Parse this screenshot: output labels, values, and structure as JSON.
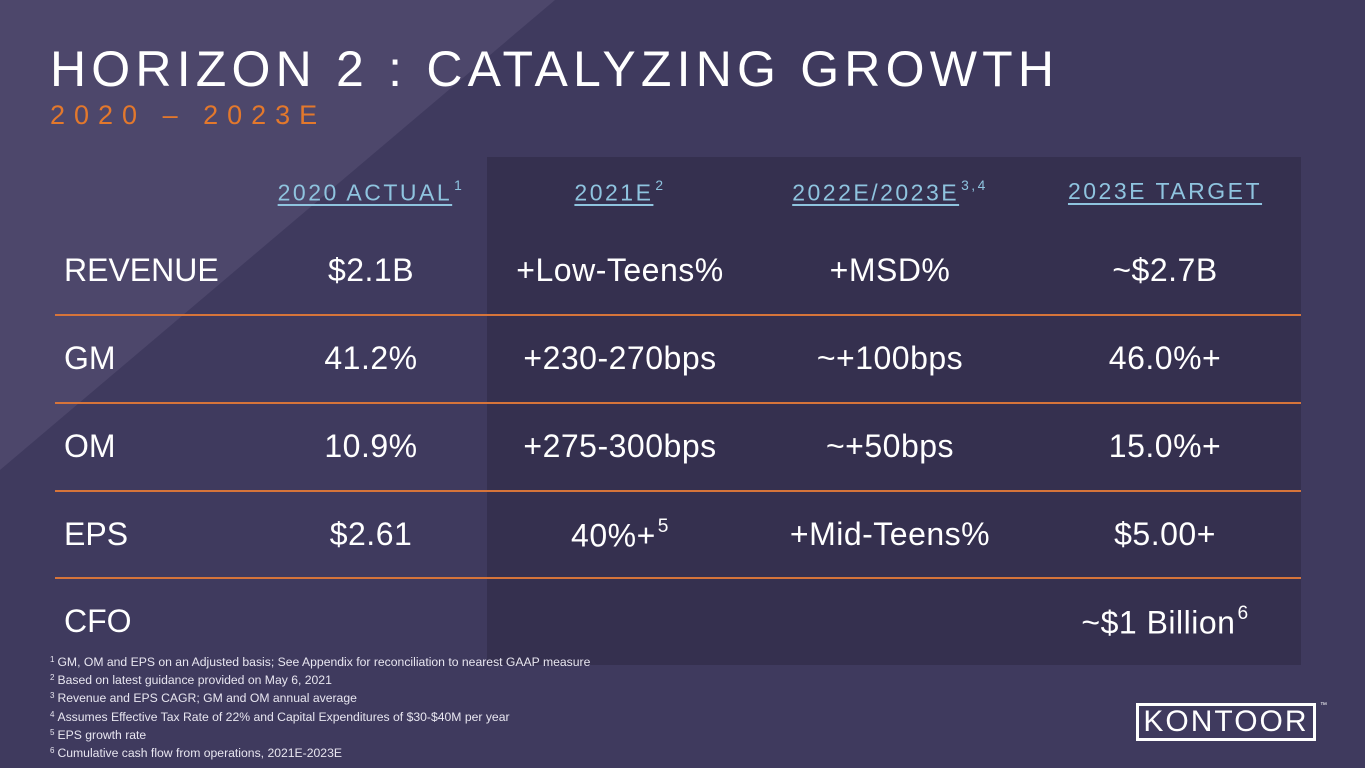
{
  "title": "HORIZON 2 : CATALYZING GROWTH",
  "subtitle": "2020 – 2023E",
  "colors": {
    "background": "#3f3a5e",
    "accent": "#e3782c",
    "header": "#8fc4df",
    "panel": "#35304f"
  },
  "columns": [
    {
      "label": "2020 ACTUAL",
      "sup": "1"
    },
    {
      "label": "2021E",
      "sup": "2"
    },
    {
      "label": "2022E/2023E",
      "sup": "3,4"
    },
    {
      "label": "2023E TARGET",
      "sup": ""
    }
  ],
  "rows": [
    {
      "label": "REVENUE",
      "values": [
        "$2.1B",
        "+Low-Teens%",
        "+MSD%",
        "~$2.7B"
      ]
    },
    {
      "label": "GM",
      "values": [
        "41.2%",
        "+230-270bps",
        "~+100bps",
        "46.0%+"
      ]
    },
    {
      "label": "OM",
      "values": [
        "10.9%",
        "+275-300bps",
        "~+50bps",
        "15.0%+"
      ]
    },
    {
      "label": "EPS",
      "values": [
        "$2.61",
        "40%+",
        "+Mid-Teens%",
        "$5.00+"
      ],
      "sups": [
        "",
        "5",
        "",
        ""
      ]
    },
    {
      "label": "CFO",
      "values": [
        "",
        "",
        "",
        "~$1 Billion"
      ],
      "sups": [
        "",
        "",
        "",
        "6"
      ]
    }
  ],
  "footnotes": [
    {
      "n": "1",
      "text": "GM, OM and EPS on an Adjusted basis; See Appendix for reconciliation to nearest GAAP measure"
    },
    {
      "n": "2",
      "text": "Based on latest guidance provided on May 6, 2021"
    },
    {
      "n": "3",
      "text": "Revenue and EPS CAGR; GM and OM annual average"
    },
    {
      "n": "4",
      "text": "Assumes Effective Tax Rate of 22% and Capital Expenditures of $30-$40M per year"
    },
    {
      "n": "5",
      "text": "EPS growth rate"
    },
    {
      "n": "6",
      "text": "Cumulative cash flow from operations, 2021E-2023E"
    }
  ],
  "logo": {
    "text": "KONTOOR",
    "tm": "™"
  }
}
